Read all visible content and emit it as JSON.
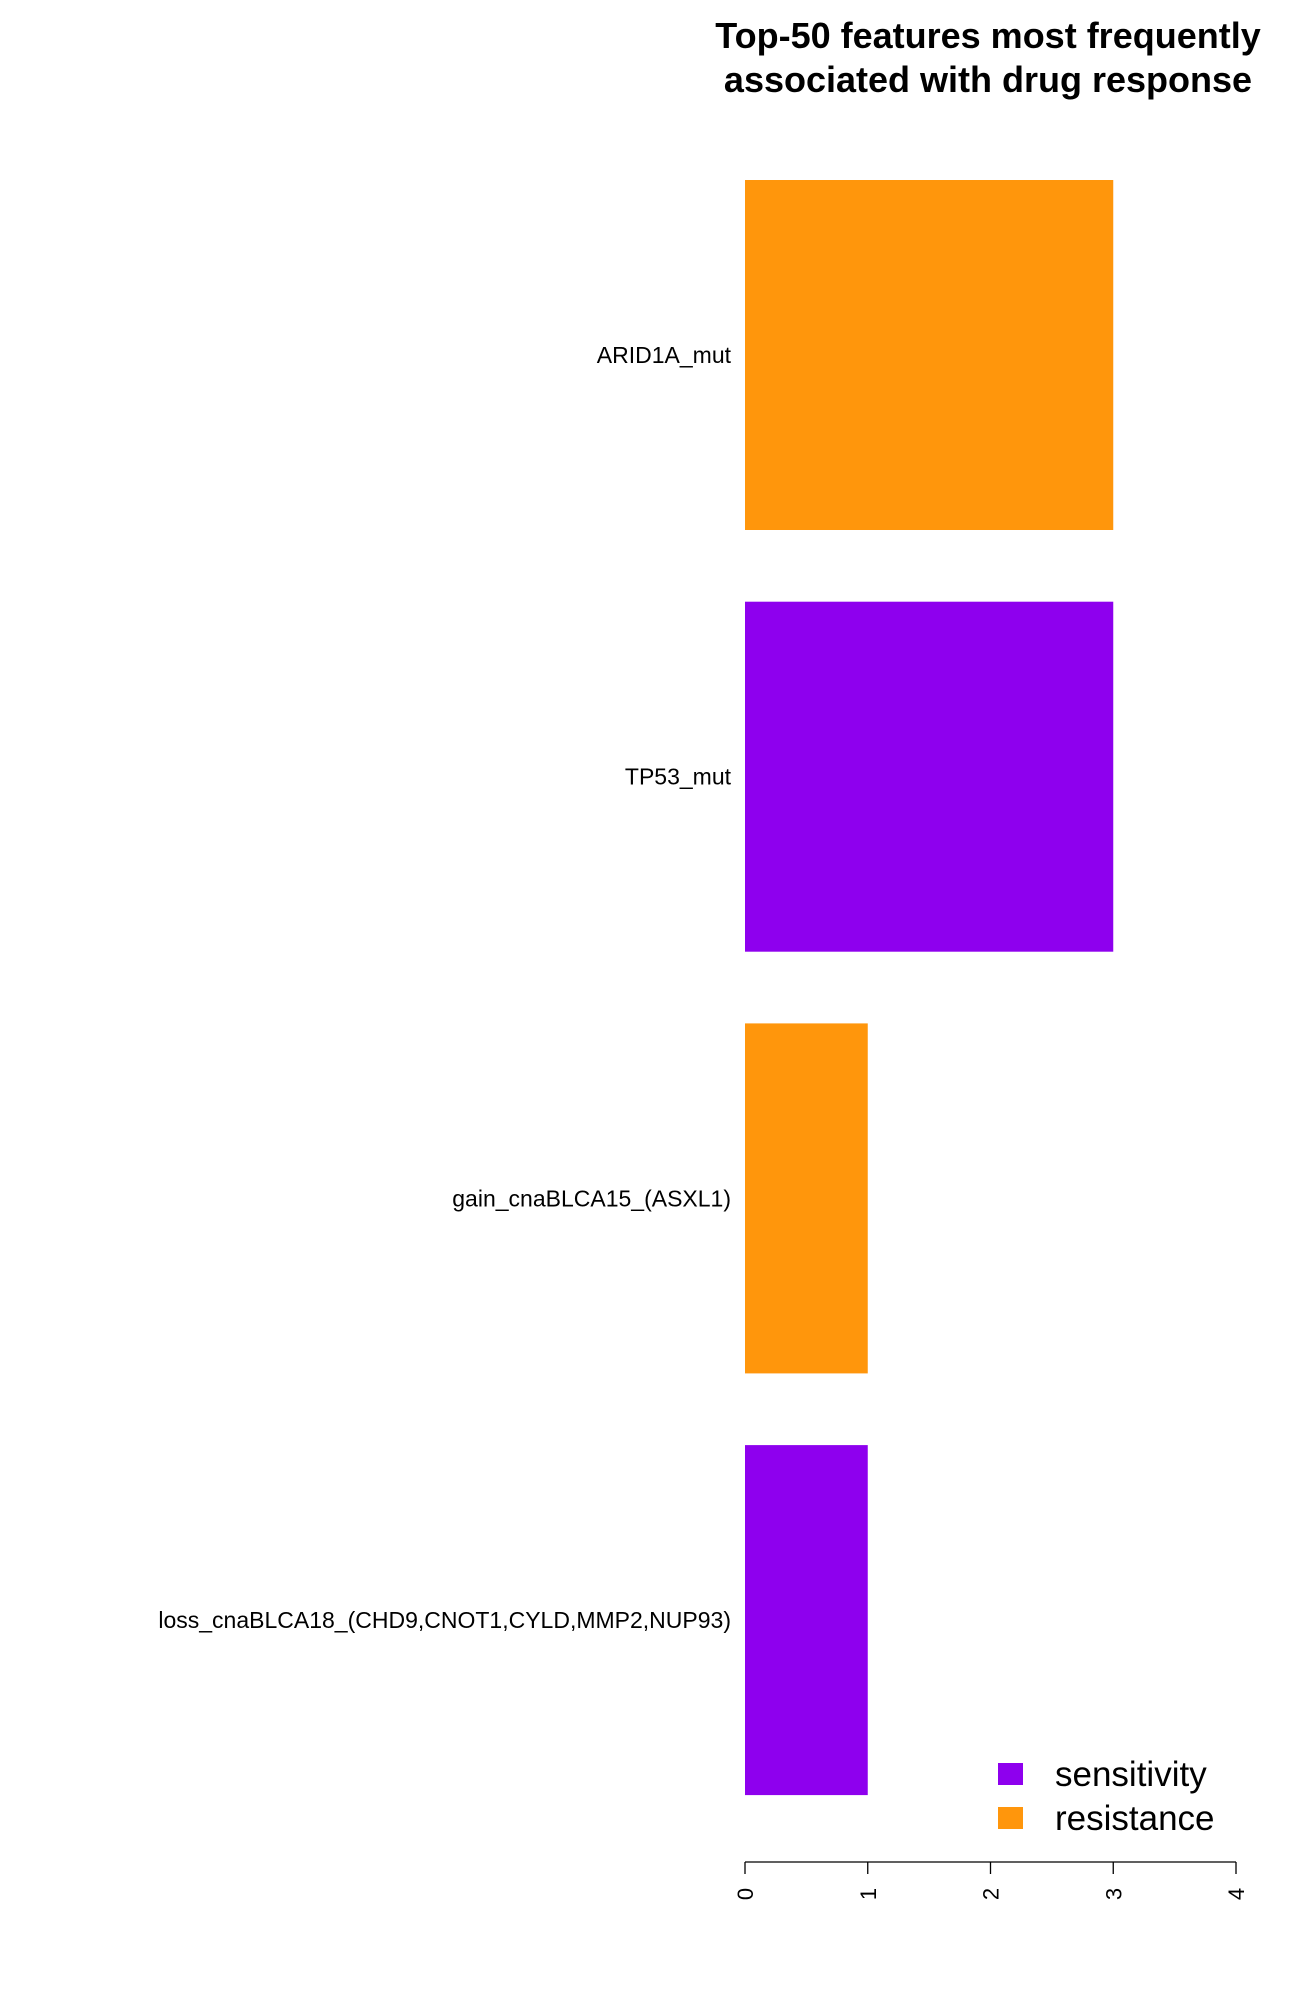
{
  "chart_data": {
    "type": "bar",
    "orientation": "horizontal",
    "title_lines": [
      "Top-50 features most frequently",
      "associated with drug response"
    ],
    "categories": [
      "ARID1A_mut",
      "TP53_mut",
      "gain_cnaBLCA15_(ASXL1)",
      "loss_cnaBLCA18_(CHD9,CNOT1,CYLD,MMP2,NUP93)"
    ],
    "values": [
      3,
      3,
      1,
      1
    ],
    "groups": [
      "resistance",
      "sensitivity",
      "resistance",
      "sensitivity"
    ],
    "xlim": [
      0,
      4
    ],
    "xticks": [
      "0",
      "1",
      "2",
      "3",
      "4"
    ],
    "xlabel": "",
    "ylabel": "",
    "grid": false,
    "legend": {
      "placement": "bottom-right",
      "entries": [
        {
          "label": "sensitivity",
          "color": "#8E00EE"
        },
        {
          "label": "resistance",
          "color": "#FF960C"
        }
      ]
    },
    "colors": {
      "sensitivity": "#8E00EE",
      "resistance": "#FF960C"
    }
  }
}
